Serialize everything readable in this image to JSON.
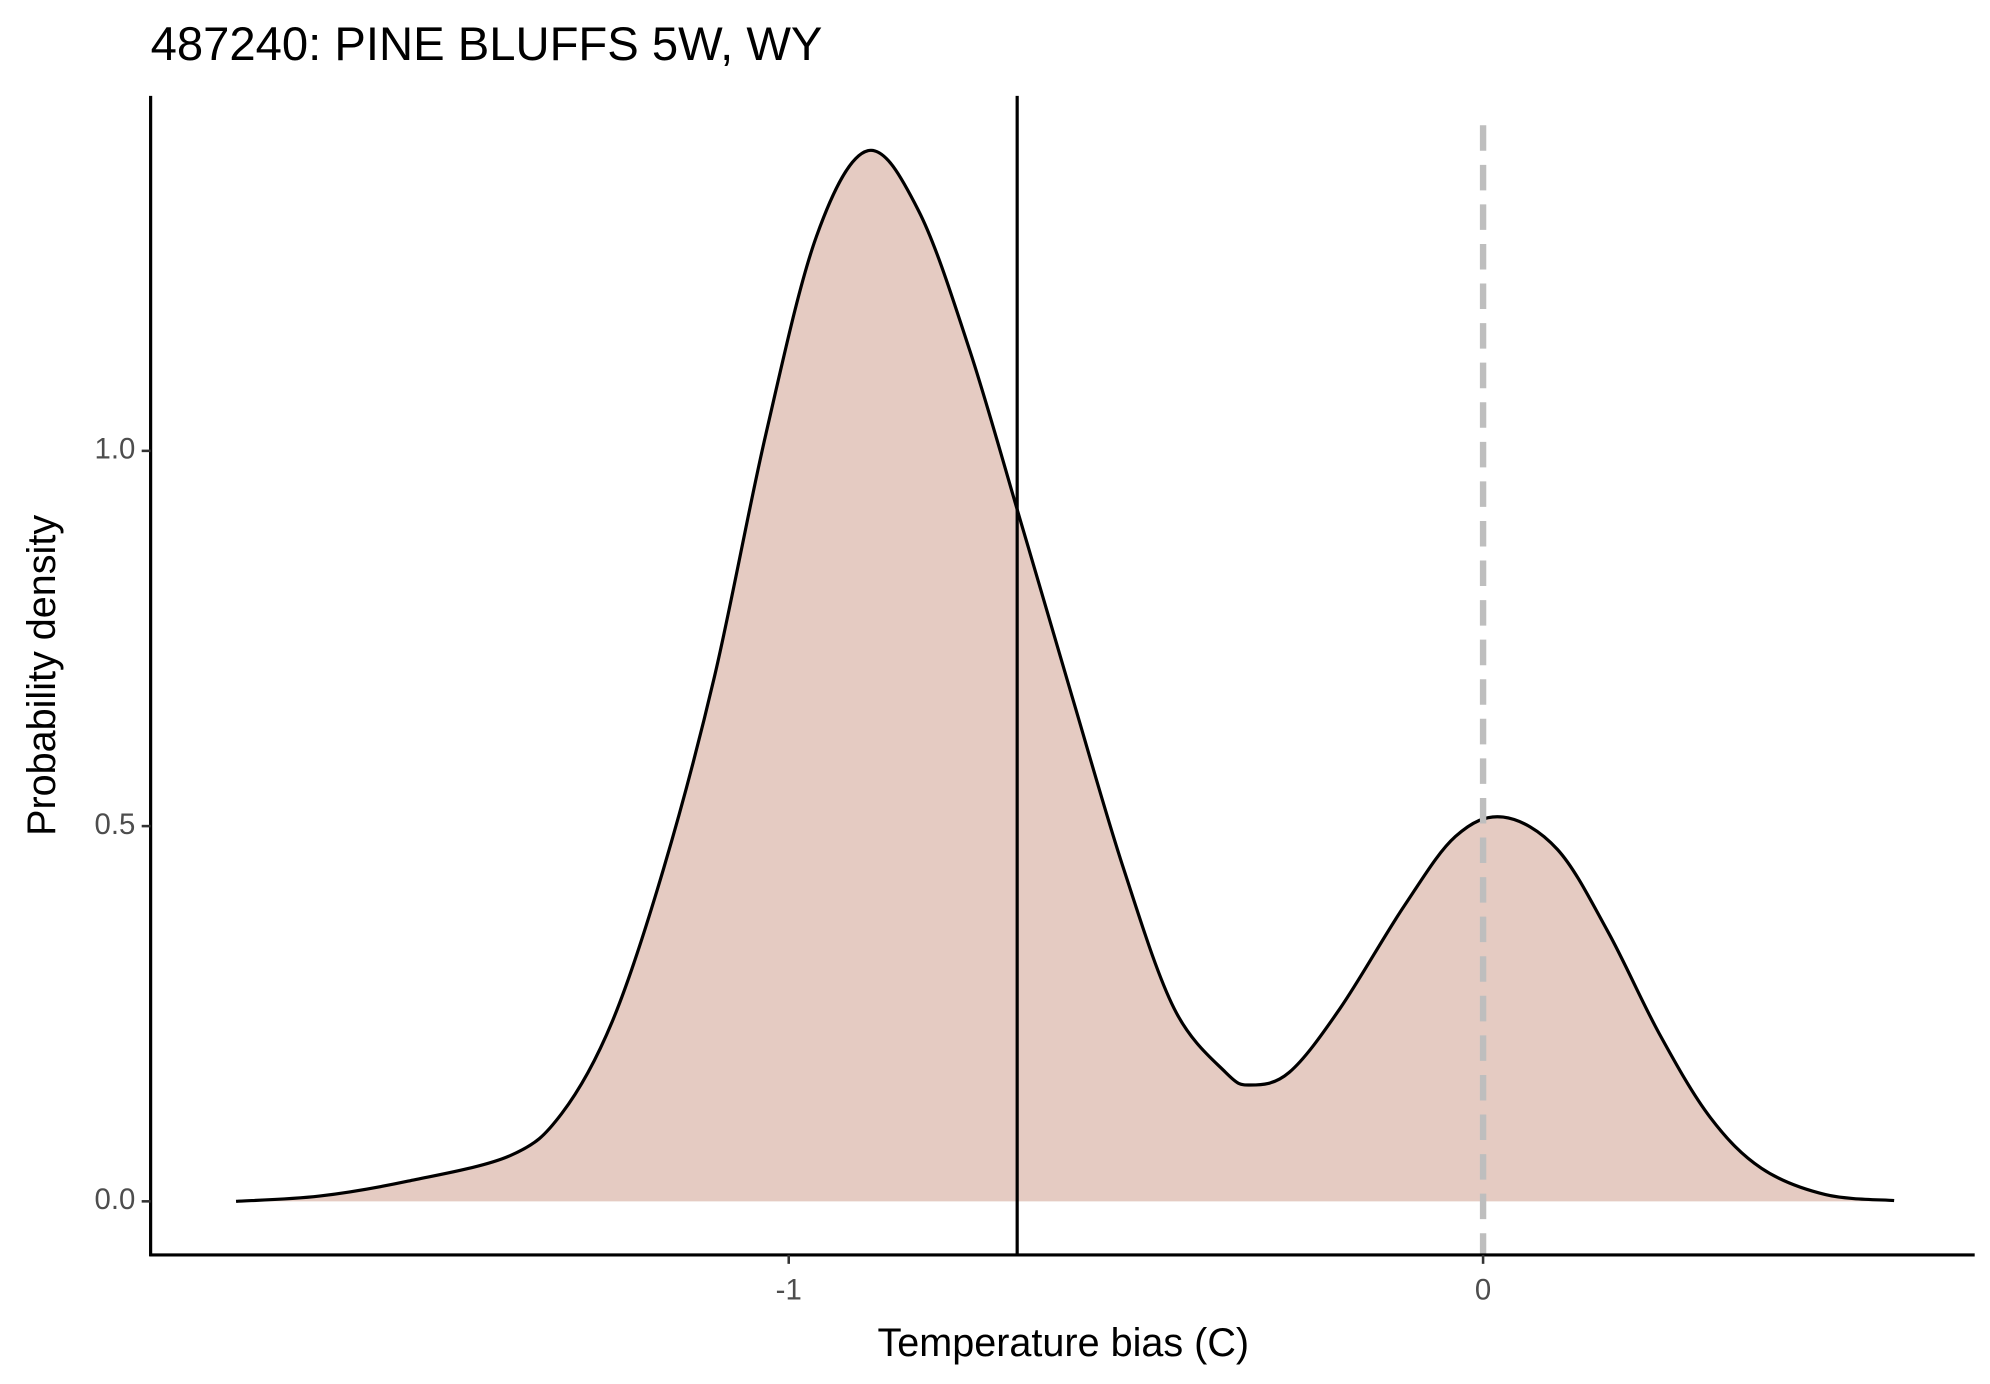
{
  "chart_data": {
    "type": "density",
    "title": "487240: PINE BLUFFS 5W, WY",
    "x_label": "Temperature bias (C)",
    "y_label": "Probability density",
    "x": [
      -1.796,
      -1.676,
      -1.548,
      -1.401,
      -1.327,
      -1.254,
      -1.18,
      -1.107,
      -1.033,
      -0.96,
      -0.886,
      -0.813,
      -0.739,
      -0.665,
      -0.592,
      -0.518,
      -0.445,
      -0.371,
      -0.335,
      -0.279,
      -0.206,
      -0.114,
      -0.04,
      0.029,
      0.107,
      0.18,
      0.254,
      0.327,
      0.401,
      0.493,
      0.592
    ],
    "values": [
      0,
      0.007,
      0.027,
      0.061,
      0.117,
      0.24,
      0.444,
      0.699,
      1.022,
      1.286,
      1.4,
      1.32,
      1.133,
      0.903,
      0.673,
      0.444,
      0.257,
      0.172,
      0.155,
      0.172,
      0.257,
      0.393,
      0.486,
      0.512,
      0.469,
      0.359,
      0.223,
      0.112,
      0.044,
      0.009,
      0.001
    ],
    "fill": "#e5cbc2",
    "color": "#000000",
    "xlim": [
      -1.919,
      0.708
    ],
    "ylim": [
      -0.0714,
      1.473
    ],
    "xticks": [
      -1,
      0
    ],
    "yticks": [
      {
        "value": 0,
        "label": "0.0"
      },
      {
        "value": 0.5,
        "label": "0.5"
      },
      {
        "value": 1,
        "label": "1.0"
      }
    ],
    "vlines": [
      {
        "x": -0.671,
        "color": "#000000",
        "dashed": false
      },
      {
        "x": 0,
        "color": "#bebebe",
        "dashed": true
      }
    ]
  }
}
